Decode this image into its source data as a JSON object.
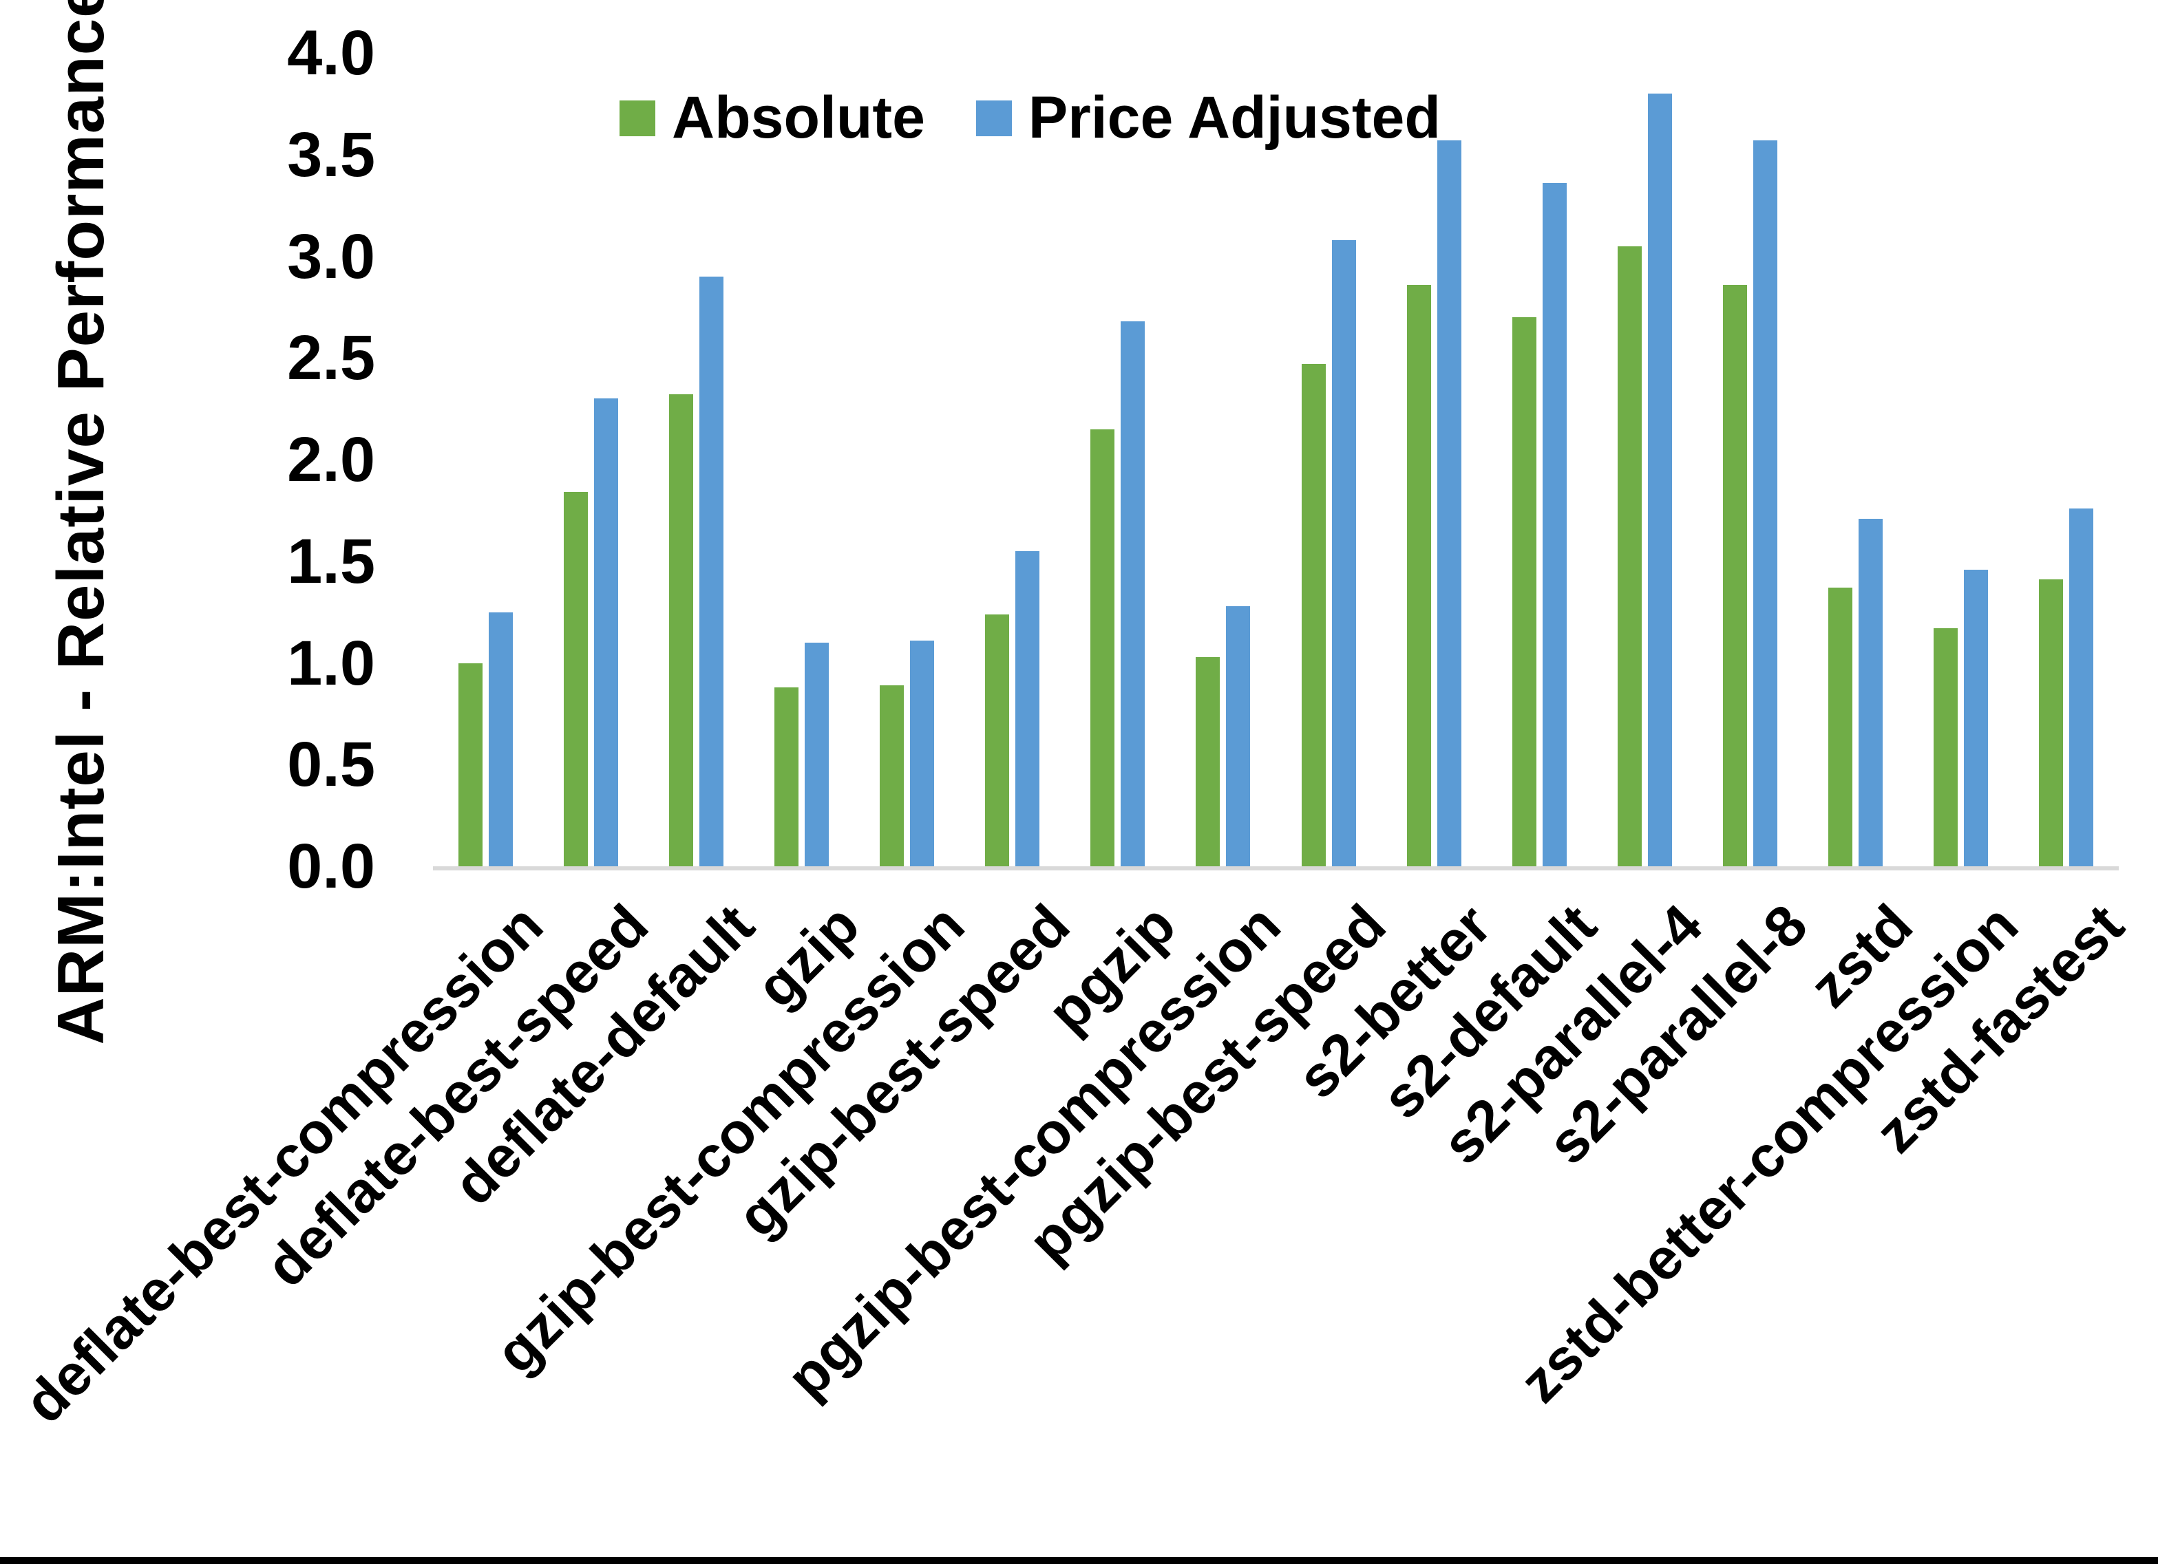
{
  "colors": {
    "background": "#FFFFFF",
    "absolute_green": "#70AD47",
    "price_adjusted_blue": "#5B9BD5",
    "axis_line": "#D9D9D9",
    "text": "#000000",
    "bottom_bar": "#000000"
  },
  "chart_data": {
    "type": "bar",
    "title": "",
    "xlabel": "",
    "ylabel": "ARM:Intel - Relative Performance",
    "ylim": [
      0,
      4.0
    ],
    "ytick_step": 0.5,
    "ytick_labels": [
      "0.0",
      "0.5",
      "1.0",
      "1.5",
      "2.0",
      "2.5",
      "3.0",
      "3.5",
      "4.0"
    ],
    "grid": false,
    "legend_position": "top-center",
    "categories": [
      "deflate-best-compression",
      "deflate-best-speed",
      "deflate-default",
      "gzip",
      "gzip-best-compression",
      "gzip-best-speed",
      "pgzip",
      "pgzip-best-compression",
      "pgzip-best-speed",
      "s2-better",
      "s2-default",
      "s2-parallel-4",
      "s2-parallel-8",
      "zstd",
      "zstd-better-compression",
      "zstd-fastest"
    ],
    "series": [
      {
        "name": "Absolute",
        "color": "#70AD47",
        "values": [
          1.0,
          1.84,
          2.32,
          0.88,
          0.89,
          1.24,
          2.15,
          1.03,
          2.47,
          2.86,
          2.7,
          3.05,
          2.86,
          1.37,
          1.17,
          1.41
        ]
      },
      {
        "name": "Price Adjusted",
        "color": "#5B9BD5",
        "values": [
          1.25,
          2.3,
          2.9,
          1.1,
          1.11,
          1.55,
          2.68,
          1.28,
          3.08,
          3.57,
          3.36,
          3.8,
          3.57,
          1.71,
          1.46,
          1.76
        ]
      }
    ]
  }
}
